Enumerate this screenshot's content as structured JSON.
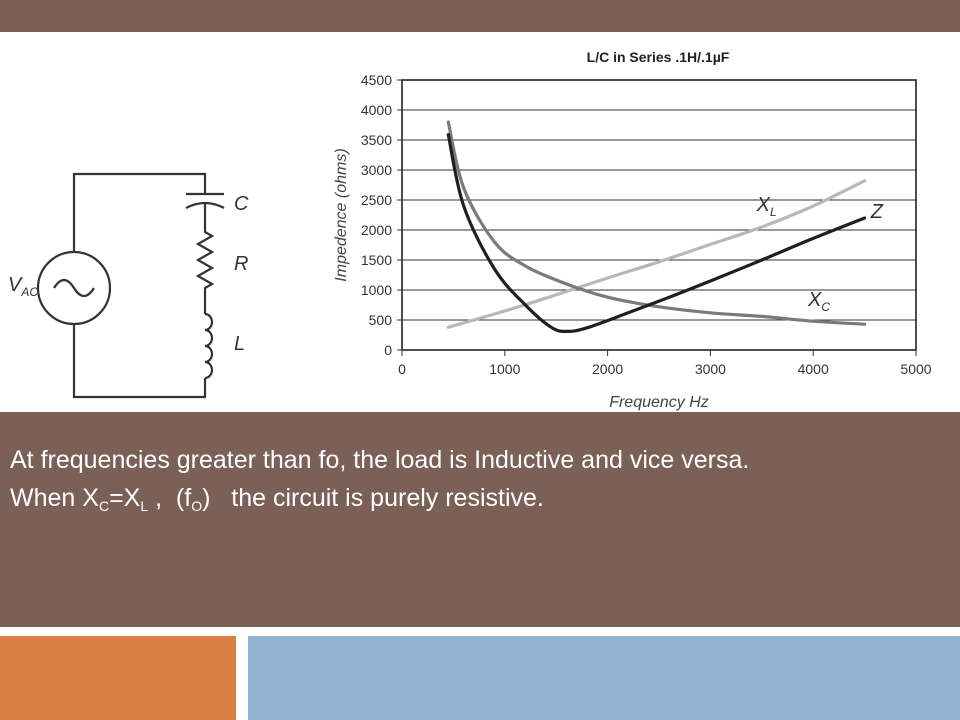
{
  "colors": {
    "band": "#7a6056",
    "text_light": "#ffffff",
    "footer_orange": "#dc7f47",
    "footer_blue": "#93b4d1",
    "curve_z": "#1f1f1f",
    "curve_xc": "#7a7a7a",
    "curve_xl": "#b8b8b8"
  },
  "circuit": {
    "source_label": "V",
    "source_sub": "AC",
    "capacitor_label": "C",
    "resistor_label": "R",
    "inductor_label": "L"
  },
  "chart_data": {
    "type": "line",
    "title": "L/C in Series .1H/.1µF",
    "xlabel": "Frequency Hz",
    "ylabel": "Impedence (ohms)",
    "xlim": [
      0,
      5000
    ],
    "ylim": [
      0,
      4500
    ],
    "xticks": [
      0,
      1000,
      2000,
      3000,
      4000,
      5000
    ],
    "yticks": [
      0,
      500,
      1000,
      1500,
      2000,
      2500,
      3000,
      3500,
      4000,
      4500
    ],
    "grid": "horizontal",
    "series": [
      {
        "name": "Z",
        "label_main": "Z",
        "label_sub": "",
        "label_at": [
          4560,
          2200
        ],
        "x": [
          450,
          600,
          900,
          1200,
          1450,
          1600,
          1800,
          2200,
          2600,
          3000,
          3500,
          4000,
          4500
        ],
        "y": [
          3590,
          2400,
          1350,
          750,
          380,
          310,
          370,
          620,
          880,
          1150,
          1500,
          1860,
          2200
        ]
      },
      {
        "name": "XC",
        "label_main": "X",
        "label_sub": "C",
        "label_at": [
          3950,
          730
        ],
        "x": [
          450,
          600,
          900,
          1200,
          1600,
          2000,
          2500,
          3000,
          3500,
          4000,
          4500
        ],
        "y": [
          3800,
          2700,
          1800,
          1400,
          1100,
          880,
          720,
          620,
          560,
          480,
          430
        ]
      },
      {
        "name": "XL",
        "label_main": "X",
        "label_sub": "L",
        "label_at": [
          3450,
          2320
        ],
        "x": [
          450,
          1000,
          1500,
          2000,
          2500,
          3000,
          3500,
          4000,
          4500
        ],
        "y": [
          380,
          650,
          920,
          1200,
          1470,
          1760,
          2050,
          2400,
          2820
        ]
      }
    ]
  },
  "text": {
    "line1": "At frequencies greater than fo, the load is Inductive and vice versa.",
    "line2_when": "When X",
    "line2_sub_c": "C",
    "line2_eq": "=X",
    "line2_sub_l": "L",
    "line2_paren_open": " ,  (f",
    "line2_sub_o": "O",
    "line2_rest": ")   the circuit is purely resistive."
  }
}
